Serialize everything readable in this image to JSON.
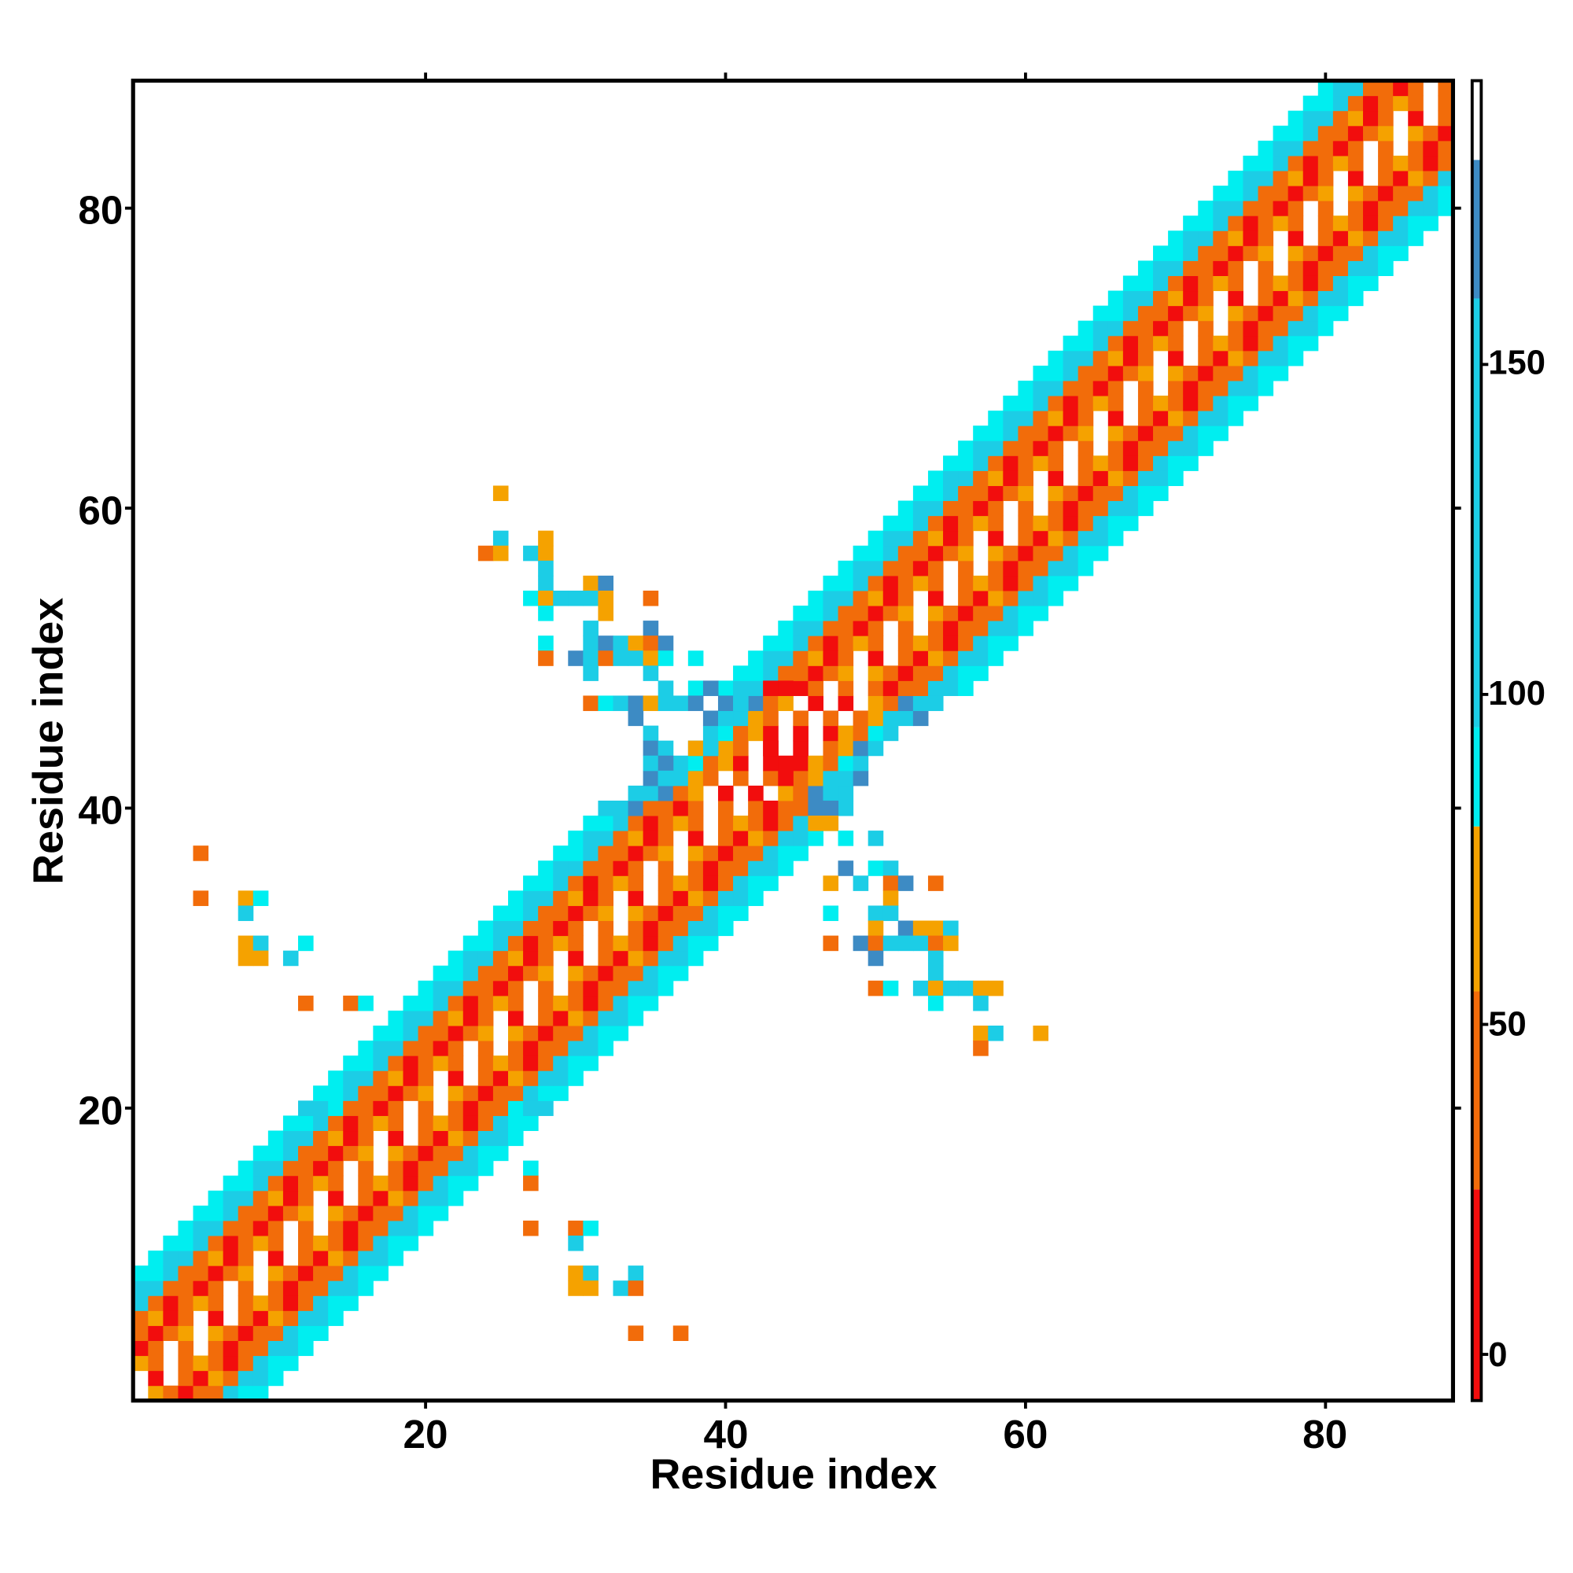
{
  "chart_data": {
    "type": "heatmap",
    "title": "",
    "xlabel": "Residue index",
    "ylabel": "Residue index",
    "xlim": [
      0.5,
      88.5
    ],
    "ylim": [
      0.5,
      88.5
    ],
    "xticks": [
      20,
      40,
      60,
      80
    ],
    "yticks": [
      20,
      40,
      60,
      80
    ],
    "xtick_labels": [
      "20",
      "40",
      "60",
      "80"
    ],
    "ytick_labels": [
      "20",
      "40",
      "60",
      "80"
    ],
    "grid": false,
    "colorbar": {
      "range": [
        -7,
        193
      ],
      "ticks": [
        0,
        50,
        100,
        150
      ],
      "tick_labels": [
        "0",
        "50",
        "100",
        "150"
      ],
      "segments": [
        {
          "from": -7,
          "to": 25,
          "color": "#f20d0d"
        },
        {
          "from": 25,
          "to": 55,
          "color": "#f26c0a"
        },
        {
          "from": 55,
          "to": 80,
          "color": "#f5a200"
        },
        {
          "from": 80,
          "to": 95,
          "color": "#00eef0"
        },
        {
          "from": 95,
          "to": 160,
          "color": "#1ccde6"
        },
        {
          "from": 160,
          "to": 181,
          "color": "#3d8bc4"
        },
        {
          "from": 181,
          "to": 193,
          "color": "#ffffff"
        }
      ]
    },
    "value_classes": {
      "r": {
        "value": 10,
        "color": "#f20d0d"
      },
      "o": {
        "value": 40,
        "color": "#f26c0a"
      },
      "a": {
        "value": 68,
        "color": "#f5a200"
      },
      "c": {
        "value": 88,
        "color": "#00eef0"
      },
      "b": {
        "value": 125,
        "color": "#1ccde6"
      },
      "s": {
        "value": 170,
        "color": "#3d8bc4"
      }
    },
    "band_offset_from_diagonal": -8,
    "band_rows": [
      "ccbooroa.aoroobcc",
      "cbboaro.r.oraobbc",
      "ccboroao.oaorobcc",
      "cbbooro.o.oroobbc",
      "ccbooroa.aoroobcc",
      "cbboaro.r.oraobbc",
      "ccboroao.oaorobcc",
      "cbbooro.o.oroobbc",
      "ccbooroa.aoroobcc",
      "cbboaro.r.oraobbc",
      "ccboroao.oaorobcc",
      "cbbooro.o.oroobbc",
      "ccbooroa.aoroobcc",
      "cbboaro.r.oraobbc",
      "ccboroao.oaorobcc",
      "cbbooro.o.oroobbc",
      "ccbooroa.aoroobcc",
      "cbboaro.r.oraobbc",
      "ccboroao.oaorobcc",
      "bbcooro.o.oroocbb",
      "ccbooroa.aoroobcc",
      "cbboaro.r.oraobbc",
      "ccboroao.oaorobcc",
      "cbbooro.o.oroobbc",
      "ccbooroa.aoroobcc",
      "cbboaro.r.oraobbc",
      "ccboroao.oaorobcc",
      "cbbooro.o.oroobbc",
      "ccbooroa.aoroobcc",
      "cbboaro.r.oraobbc",
      "ccboroao.oaorobcc",
      "cbbooro.o.oroobbc",
      "ccbooroa.aoroobcc",
      "cbboaro.r.oraobbc",
      "ccboroao.oaorobcc",
      "cbbooro.o.oroobbc",
      "ccbooroa.aoroobcc",
      "cbboaro.r.oraobbc",
      "ccboroao.oaorobcc",
      "bbsooro.o.oroosbb",
      ".bbsoa.r.r.aosbb.",
      ".sbbao.o.o.oabbs.",
      "..bcoar.r.raocb..",
      "..bsao.r.r.oasb..",
      "..bcoar.r.raocb..",
      ".sbbao.o.o.oabbs.",
      ".bbsoa.r.r.aosbb.",
      "cbbooro.o.oroobbc",
      "ccbooroa.aoroobcc",
      "cbboaro.r.oraobbc",
      "ccboroao.oaorobcc",
      "cbbooro.o.oroobbc",
      "ccbooroa.aoroobcc",
      "cbboaro.r.oraobbc",
      "ccboroao.oaorobcc",
      "cbbooro.o.oroobbc",
      "ccbooroa.aoroobcc",
      "cbboaro.r.oraobbc",
      "ccboroao.oaorobcc",
      "cbbooro.o.oroobbc",
      "ccbooroa.aoroobcc",
      "cbboaro.r.oraobbc",
      "ccboroao.oaorobcc",
      "cbbooro.o.oroobbc",
      "ccbooroa.aoroobcc",
      "cbboaro.r.oraobbc",
      "ccboroao.oaorobcc",
      "cbbooro.o.oroobbc",
      "ccbooroa.aoroobcc",
      "cbboaro.r.oraobbc",
      "ccboroao.oaorobcc",
      "cbbooro.o.oroobbc",
      "ccbooroa.aoroobcc",
      "cbboaro.r.oraobbc",
      "ccboroao.oaorobcc",
      "cbbooro.o.oroobbc",
      "ccbooroa.aoroobcc",
      "cbboaro.r.oraobbc",
      "ccboroao.oaorobcc",
      "cbbooro.o.oroobbc",
      "ccbooroa.aoroobcc",
      "cbboaro.r.oraobbc",
      "ccboroao.oaorobcc",
      "cbbooro.o.oroobbc",
      "ccbooroa.aoroobcc",
      "cbboaro.r.oraobbc",
      "ccboroao.oaorobcc",
      "cbbooro.o.oroobbc"
    ],
    "extra_cells": [
      [
        5,
        37,
        "o"
      ],
      [
        5,
        34,
        "o"
      ],
      [
        8,
        34,
        "a"
      ],
      [
        9,
        34,
        "c"
      ],
      [
        8,
        33,
        "b"
      ],
      [
        8,
        31,
        "a"
      ],
      [
        9,
        31,
        "b"
      ],
      [
        8,
        30,
        "a"
      ],
      [
        9,
        30,
        "a"
      ],
      [
        11,
        30,
        "b"
      ],
      [
        12,
        31,
        "c"
      ],
      [
        12,
        27,
        "o"
      ],
      [
        15,
        27,
        "o"
      ],
      [
        16,
        27,
        "c"
      ],
      [
        25,
        61,
        "a"
      ],
      [
        25,
        58,
        "b"
      ],
      [
        24,
        57,
        "o"
      ],
      [
        25,
        57,
        "a"
      ],
      [
        27,
        57,
        "b"
      ],
      [
        28,
        58,
        "a"
      ],
      [
        28,
        57,
        "a"
      ],
      [
        28,
        56,
        "b"
      ],
      [
        28,
        55,
        "b"
      ],
      [
        27,
        54,
        "c"
      ],
      [
        28,
        54,
        "a"
      ],
      [
        29,
        54,
        "b"
      ],
      [
        30,
        54,
        "b"
      ],
      [
        31,
        55,
        "a"
      ],
      [
        32,
        55,
        "s"
      ],
      [
        31,
        54,
        "b"
      ],
      [
        32,
        54,
        "a"
      ],
      [
        32,
        53,
        "a"
      ],
      [
        28,
        53,
        "c"
      ],
      [
        35,
        54,
        "o"
      ],
      [
        31,
        52,
        "b"
      ],
      [
        35,
        52,
        "s"
      ],
      [
        31,
        51,
        "b"
      ],
      [
        32,
        51,
        "s"
      ],
      [
        33,
        51,
        "b"
      ],
      [
        34,
        51,
        "a"
      ],
      [
        35,
        51,
        "o"
      ],
      [
        36,
        51,
        "s"
      ],
      [
        28,
        51,
        "c"
      ],
      [
        28,
        50,
        "o"
      ],
      [
        30,
        50,
        "s"
      ],
      [
        31,
        50,
        "b"
      ],
      [
        32,
        50,
        "o"
      ],
      [
        33,
        50,
        "b"
      ],
      [
        34,
        50,
        "b"
      ],
      [
        35,
        50,
        "a"
      ],
      [
        36,
        50,
        "c"
      ],
      [
        38,
        50,
        "c"
      ],
      [
        31,
        49,
        "b"
      ],
      [
        35,
        49,
        "b"
      ],
      [
        36,
        48,
        "b"
      ],
      [
        38,
        48,
        "c"
      ],
      [
        39,
        48,
        "s"
      ],
      [
        43,
        48,
        "r"
      ],
      [
        44,
        48,
        "r"
      ],
      [
        31,
        47,
        "o"
      ],
      [
        32,
        47,
        "c"
      ],
      [
        33,
        47,
        "b"
      ],
      [
        34,
        47,
        "s"
      ],
      [
        35,
        47,
        "a"
      ],
      [
        36,
        47,
        "b"
      ],
      [
        37,
        47,
        "b"
      ],
      [
        38,
        47,
        "s"
      ],
      [
        40,
        47,
        "s"
      ],
      [
        41,
        47,
        "b"
      ],
      [
        34,
        46,
        "s"
      ],
      [
        35,
        45,
        "b"
      ],
      [
        35,
        44,
        "s"
      ],
      [
        36,
        44,
        "b"
      ],
      [
        38,
        44,
        "a"
      ],
      [
        39,
        44,
        "b"
      ],
      [
        35,
        43,
        "b"
      ],
      [
        36,
        43,
        "s"
      ],
      [
        36,
        42,
        "b"
      ],
      [
        43,
        44,
        "r"
      ],
      [
        44,
        43,
        "r"
      ],
      [
        44,
        42,
        "r"
      ],
      [
        47,
        41,
        "b"
      ],
      [
        47,
        40,
        "s"
      ],
      [
        46,
        39,
        "a"
      ],
      [
        47,
        39,
        "a"
      ],
      [
        48,
        38,
        "c"
      ],
      [
        50,
        38,
        "b"
      ],
      [
        48,
        36,
        "s"
      ],
      [
        50,
        36,
        "c"
      ],
      [
        51,
        36,
        "b"
      ],
      [
        47,
        35,
        "a"
      ],
      [
        49,
        35,
        "b"
      ],
      [
        51,
        35,
        "o"
      ],
      [
        52,
        35,
        "s"
      ],
      [
        54,
        35,
        "o"
      ],
      [
        51,
        34,
        "a"
      ],
      [
        47,
        33,
        "c"
      ],
      [
        50,
        33,
        "b"
      ],
      [
        51,
        33,
        "b"
      ],
      [
        50,
        32,
        "a"
      ],
      [
        52,
        32,
        "s"
      ],
      [
        53,
        32,
        "a"
      ],
      [
        54,
        32,
        "a"
      ],
      [
        55,
        32,
        "b"
      ],
      [
        47,
        31,
        "o"
      ],
      [
        49,
        31,
        "s"
      ],
      [
        50,
        31,
        "o"
      ],
      [
        51,
        31,
        "b"
      ],
      [
        52,
        31,
        "b"
      ],
      [
        53,
        31,
        "b"
      ],
      [
        54,
        31,
        "o"
      ],
      [
        55,
        31,
        "a"
      ],
      [
        50,
        30,
        "s"
      ],
      [
        54,
        30,
        "b"
      ],
      [
        54,
        29,
        "b"
      ],
      [
        50,
        28,
        "o"
      ],
      [
        51,
        28,
        "c"
      ],
      [
        53,
        28,
        "b"
      ],
      [
        54,
        28,
        "a"
      ],
      [
        55,
        28,
        "b"
      ],
      [
        56,
        28,
        "b"
      ],
      [
        57,
        28,
        "a"
      ],
      [
        58,
        28,
        "a"
      ],
      [
        54,
        27,
        "c"
      ],
      [
        57,
        27,
        "b"
      ],
      [
        57,
        25,
        "a"
      ],
      [
        58,
        25,
        "b"
      ],
      [
        61,
        25,
        "a"
      ],
      [
        57,
        24,
        "o"
      ],
      [
        27,
        16,
        "c"
      ],
      [
        27,
        15,
        "o"
      ],
      [
        27,
        12,
        "o"
      ],
      [
        30,
        12,
        "o"
      ],
      [
        31,
        12,
        "c"
      ],
      [
        30,
        11,
        "b"
      ],
      [
        30,
        9,
        "a"
      ],
      [
        31,
        9,
        "b"
      ],
      [
        34,
        9,
        "b"
      ],
      [
        30,
        8,
        "a"
      ],
      [
        31,
        8,
        "a"
      ],
      [
        33,
        8,
        "b"
      ],
      [
        34,
        8,
        "o"
      ],
      [
        34,
        5,
        "o"
      ],
      [
        37,
        5,
        "o"
      ]
    ]
  }
}
